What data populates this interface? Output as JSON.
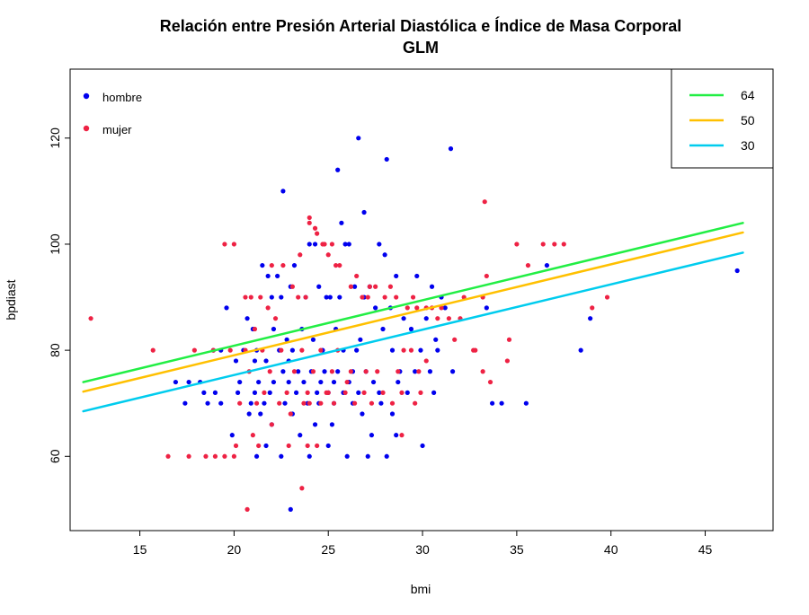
{
  "chart_data": {
    "type": "scatter",
    "title": "Relación entre Presión Arterial Diastólica e Índice de Masa Corporal",
    "subtitle": "GLM",
    "xlabel": "bmi",
    "ylabel": "bpdiast",
    "xlim": [
      11.3,
      48.6
    ],
    "ylim": [
      46,
      133
    ],
    "xticks": [
      15,
      20,
      25,
      30,
      35,
      40,
      45
    ],
    "yticks": [
      60,
      80,
      100,
      120
    ],
    "grid": false,
    "points_legend": {
      "placement": "top-left",
      "entries": [
        {
          "label": "hombre",
          "color": "#0000ee"
        },
        {
          "label": "mujer",
          "color": "#ee2244"
        }
      ]
    },
    "lines_legend": {
      "placement": "top-right",
      "entries": [
        {
          "label": "64",
          "color": "#22ee44"
        },
        {
          "label": "50",
          "color": "#ffc000"
        },
        {
          "label": "30",
          "color": "#00ccee"
        }
      ]
    },
    "lines": [
      {
        "name": "64",
        "color": "#22ee44",
        "x": [
          12,
          47
        ],
        "y": [
          74.0,
          104.0
        ]
      },
      {
        "name": "50",
        "color": "#ffc000",
        "x": [
          12,
          47
        ],
        "y": [
          72.2,
          102.2
        ]
      },
      {
        "name": "30",
        "color": "#00ccee",
        "x": [
          12,
          47
        ],
        "y": [
          68.5,
          98.4
        ]
      }
    ],
    "series": [
      {
        "name": "hombre",
        "color": "#0000ee",
        "x": [
          18.9,
          19.6,
          20.7,
          21.5,
          22.0,
          22.5,
          23.8,
          26.6,
          28.1,
          31.5,
          25.5,
          22.6,
          26.9,
          25.7,
          24.0,
          24.3,
          25.9,
          26.1,
          27.7,
          28.0,
          23.2,
          21.8,
          22.3,
          23.0,
          24.5,
          25.1,
          26.4,
          27.2,
          28.6,
          29.7,
          30.5,
          31.0,
          24.9,
          25.6,
          26.9,
          27.5,
          28.3,
          29.0,
          30.2,
          31.2,
          21.0,
          22.1,
          22.8,
          23.6,
          24.2,
          25.4,
          26.7,
          27.9,
          29.4,
          30.7,
          19.3,
          20.5,
          21.2,
          22.4,
          23.1,
          24.7,
          25.8,
          26.5,
          28.4,
          29.9,
          30.8,
          20.1,
          21.1,
          21.7,
          22.6,
          23.4,
          24.1,
          24.8,
          25.5,
          26.3,
          27.0,
          28.8,
          29.6,
          30.4,
          31.6,
          17.6,
          18.2,
          20.3,
          21.3,
          22.1,
          22.9,
          23.7,
          24.6,
          25.3,
          26.1,
          27.4,
          28.7,
          18.4,
          19.0,
          20.2,
          21.1,
          21.9,
          23.3,
          24.4,
          25.0,
          25.8,
          26.6,
          27.7,
          29.2,
          30.6,
          18.6,
          19.3,
          20.9,
          21.6,
          22.7,
          23.9,
          24.5,
          25.3,
          26.3,
          21.4,
          23.1,
          22.0,
          24.3,
          25.2,
          23.5,
          21.7,
          25.0,
          27.3,
          28.6,
          30.0,
          21.2,
          22.5,
          24.0,
          26.0,
          27.1,
          28.1,
          33.4,
          33.7,
          36.6,
          38.4,
          38.9,
          46.7,
          34.2,
          35.5,
          16.9,
          17.4,
          23.0,
          27.8,
          26.8,
          28.4,
          22.9,
          19.9,
          20.8
        ],
        "y": [
          80,
          88,
          86,
          96,
          90,
          90,
          90,
          120,
          116,
          118,
          114,
          110,
          106,
          104,
          100,
          100,
          100,
          100,
          100,
          98,
          96,
          94,
          94,
          92,
          92,
          90,
          92,
          92,
          94,
          94,
          92,
          90,
          90,
          90,
          90,
          88,
          88,
          86,
          86,
          88,
          84,
          84,
          82,
          84,
          82,
          84,
          82,
          84,
          84,
          82,
          80,
          80,
          80,
          80,
          80,
          80,
          80,
          80,
          80,
          80,
          80,
          78,
          78,
          78,
          76,
          76,
          76,
          76,
          76,
          76,
          76,
          76,
          76,
          76,
          76,
          74,
          74,
          74,
          74,
          74,
          74,
          74,
          74,
          74,
          74,
          74,
          74,
          72,
          72,
          72,
          72,
          72,
          72,
          72,
          72,
          72,
          72,
          72,
          72,
          72,
          70,
          70,
          70,
          70,
          70,
          70,
          70,
          70,
          70,
          68,
          68,
          66,
          66,
          66,
          64,
          62,
          62,
          64,
          64,
          62,
          60,
          60,
          60,
          60,
          60,
          60,
          88,
          70,
          96,
          80,
          86,
          95,
          70,
          70,
          74,
          70,
          50,
          70,
          68,
          68,
          78,
          64,
          68
        ]
      },
      {
        "name": "mujer",
        "color": "#ee2244",
        "x": [
          12.4,
          15.7,
          16.5,
          17.6,
          17.9,
          18.9,
          19.5,
          20.0,
          20.6,
          20.9,
          21.1,
          21.4,
          21.8,
          22.2,
          22.6,
          23.1,
          23.4,
          23.8,
          24.0,
          24.3,
          24.7,
          25.0,
          25.4,
          25.6,
          26.2,
          26.8,
          27.1,
          27.5,
          28.0,
          28.6,
          29.2,
          29.7,
          30.2,
          30.8,
          31.4,
          32.0,
          32.7,
          33.2,
          33.6,
          34.5,
          35.0,
          35.6,
          36.4,
          37.5,
          39.0,
          39.8,
          24.0,
          24.4,
          24.8,
          25.2,
          22.0,
          23.5,
          26.5,
          27.2,
          28.3,
          29.5,
          30.5,
          31.0,
          33.3,
          33.4,
          33.2,
          32.8,
          30.2,
          29.0,
          27.0,
          26.0,
          25.0,
          24.0,
          23.0,
          22.0,
          21.0,
          20.0,
          19.5,
          19.0,
          18.5,
          20.3,
          21.2,
          22.4,
          23.7,
          24.6,
          25.3,
          26.4,
          27.3,
          28.4,
          29.6,
          21.6,
          22.8,
          23.9,
          24.9,
          25.9,
          26.9,
          27.9,
          28.9,
          29.9,
          20.8,
          21.9,
          23.2,
          24.2,
          25.2,
          26.2,
          27.6,
          28.7,
          29.8,
          19.8,
          20.6,
          21.5,
          22.5,
          23.6,
          24.6,
          25.5,
          20.1,
          21.3,
          22.9,
          23.9,
          24.4,
          28.9,
          29.4,
          23.6,
          20.7,
          32.2,
          31.7,
          37.0,
          34.6
        ],
        "y": [
          86,
          80,
          60,
          60,
          80,
          80,
          100,
          100,
          90,
          90,
          84,
          90,
          88,
          86,
          96,
          92,
          90,
          90,
          105,
          103,
          100,
          98,
          96,
          96,
          92,
          90,
          90,
          92,
          90,
          90,
          88,
          88,
          88,
          86,
          86,
          86,
          80,
          76,
          74,
          78,
          100,
          96,
          100,
          100,
          88,
          90,
          104,
          102,
          100,
          100,
          96,
          98,
          94,
          92,
          92,
          90,
          88,
          88,
          108,
          94,
          90,
          80,
          78,
          80,
          76,
          74,
          72,
          70,
          68,
          66,
          64,
          60,
          60,
          60,
          60,
          70,
          70,
          70,
          70,
          70,
          70,
          70,
          70,
          70,
          70,
          72,
          72,
          72,
          72,
          72,
          72,
          72,
          72,
          72,
          76,
          76,
          76,
          76,
          76,
          76,
          76,
          76,
          76,
          80,
          80,
          80,
          80,
          80,
          80,
          80,
          62,
          62,
          62,
          62,
          62,
          64,
          80,
          54,
          50,
          90,
          82,
          100,
          82
        ]
      }
    ]
  }
}
